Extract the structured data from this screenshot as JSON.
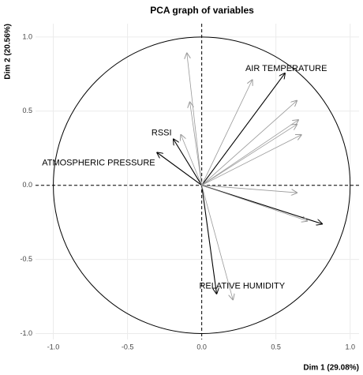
{
  "chart_data": {
    "type": "pca_variables",
    "title": "PCA graph of variables",
    "x_label": "Dim 1 (29.08%)",
    "y_label": "Dim 2 (20.56%)",
    "categories": [
      "AIR TEMPERATURE",
      "RSSI",
      "ATMOSPHERIC PRESSURE",
      "RELATIVE HUMIDITY",
      null,
      null,
      null,
      null,
      null,
      null,
      null,
      null,
      null,
      null,
      null,
      null
    ],
    "x": [
      0.56,
      -0.19,
      -0.3,
      0.1,
      0.81,
      -0.1,
      -0.08,
      -0.14,
      0.34,
      0.64,
      0.65,
      0.64,
      0.67,
      0.64,
      0.71,
      0.21
    ],
    "values": [
      0.755,
      0.31,
      0.22,
      -0.73,
      -0.26,
      0.89,
      0.56,
      0.34,
      0.71,
      0.57,
      0.44,
      0.41,
      0.34,
      -0.05,
      -0.24,
      -0.77
    ],
    "colors": [
      "#000000",
      "#000000",
      "#000000",
      "#000000",
      "#000000",
      "#999999",
      "#999999",
      "#999999",
      "#999999",
      "#999999",
      "#999999",
      "#999999",
      "#999999",
      "#999999",
      "#999999",
      "#999999"
    ],
    "xlim": [
      -1.12,
      1.06
    ],
    "ylim": [
      -1.04,
      1.09
    ],
    "xticks": [
      {
        "value": -1,
        "label": "-1.0"
      },
      {
        "value": -0.5,
        "label": "-0.5"
      },
      {
        "value": 0,
        "label": "0.0"
      },
      {
        "value": 0.5,
        "label": "0.5"
      },
      {
        "value": 1,
        "label": "1.0"
      }
    ],
    "yticks": [
      {
        "value": -1,
        "label": "-1.0"
      },
      {
        "value": -0.5,
        "label": "-0.5"
      },
      {
        "value": 0,
        "label": "0.0"
      },
      {
        "value": 0.5,
        "label": "0.5"
      },
      {
        "value": 1,
        "label": "1.0"
      }
    ],
    "grid": true
  }
}
